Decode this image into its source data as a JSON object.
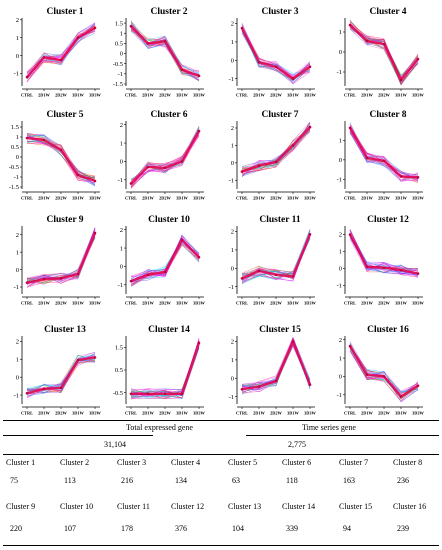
{
  "chart_data": {
    "type": "line",
    "categories": [
      "CTRL",
      "2D1W",
      "2D2W",
      "3D1W",
      "3D3W"
    ],
    "panels": [
      {
        "title": "Cluster 1",
        "yticks": [
          -1,
          0,
          1,
          2
        ],
        "ylim": [
          -1.7,
          2.1
        ],
        "values": [
          -1.2,
          -0.1,
          -0.25,
          1.0,
          1.55
        ]
      },
      {
        "title": "Cluster 2",
        "yticks": [
          -1.5,
          -1,
          -0.5,
          0,
          0.5,
          1,
          1.5
        ],
        "ylim": [
          -1.6,
          1.75
        ],
        "values": [
          1.35,
          0.5,
          0.6,
          -0.8,
          -1.1
        ]
      },
      {
        "title": "Cluster 3",
        "yticks": [
          -1,
          0,
          1,
          2
        ],
        "ylim": [
          -1.4,
          2.3
        ],
        "values": [
          1.75,
          -0.1,
          -0.35,
          -1.0,
          -0.35
        ]
      },
      {
        "title": "Cluster 4",
        "yticks": [
          -1,
          0,
          1
        ],
        "ylim": [
          -1.7,
          1.7
        ],
        "values": [
          1.35,
          0.55,
          0.4,
          -1.4,
          -0.35
        ]
      },
      {
        "title": "Cluster 5",
        "yticks": [
          -1.5,
          -1,
          -0.5,
          0,
          0.5,
          1,
          1.5
        ],
        "ylim": [
          -1.6,
          1.8
        ],
        "values": [
          0.95,
          0.85,
          0.35,
          -0.9,
          -1.2
        ]
      },
      {
        "title": "Cluster 6",
        "yticks": [
          -1,
          0,
          1,
          2
        ],
        "ylim": [
          -1.5,
          2.2
        ],
        "values": [
          -1.2,
          -0.3,
          -0.35,
          0.0,
          1.65
        ]
      },
      {
        "title": "Cluster 7",
        "yticks": [
          -1,
          0,
          1,
          2
        ],
        "ylim": [
          -1.5,
          2.4
        ],
        "values": [
          -0.5,
          -0.15,
          0.05,
          1.0,
          2.05
        ]
      },
      {
        "title": "Cluster 8",
        "yticks": [
          -1,
          0,
          1
        ],
        "ylim": [
          -1.5,
          2.0
        ],
        "values": [
          1.65,
          0.1,
          -0.05,
          -0.85,
          -0.9
        ]
      },
      {
        "title": "Cluster 9",
        "yticks": [
          -1,
          0,
          1,
          2
        ],
        "ylim": [
          -1.4,
          2.5
        ],
        "values": [
          -0.75,
          -0.55,
          -0.5,
          -0.25,
          2.1
        ]
      },
      {
        "title": "Cluster 10",
        "yticks": [
          -1,
          0,
          1,
          2
        ],
        "ylim": [
          -1.5,
          2.2
        ],
        "values": [
          -0.8,
          -0.45,
          -0.3,
          1.45,
          0.5
        ]
      },
      {
        "title": "Cluster 11",
        "yticks": [
          -1,
          0,
          1,
          2
        ],
        "ylim": [
          -1.4,
          2.3
        ],
        "values": [
          -0.55,
          -0.15,
          -0.35,
          -0.45,
          1.85
        ]
      },
      {
        "title": "Cluster 12",
        "yticks": [
          -1,
          0,
          1,
          2
        ],
        "ylim": [
          -1.5,
          2.5
        ],
        "values": [
          2.0,
          0.1,
          0.05,
          -0.1,
          -0.3
        ]
      },
      {
        "title": "Cluster 13",
        "yticks": [
          -1,
          0,
          1,
          2
        ],
        "ylim": [
          -1.5,
          2.3
        ],
        "values": [
          -0.9,
          -0.65,
          -0.6,
          0.95,
          1.1
        ]
      },
      {
        "title": "Cluster 14",
        "yticks": [
          -0.5,
          0.5,
          1.5
        ],
        "ylim": [
          -1.0,
          2.0
        ],
        "values": [
          -0.55,
          -0.55,
          -0.55,
          -0.55,
          1.7
        ]
      },
      {
        "title": "Cluster 15",
        "yticks": [
          -1,
          0,
          1,
          2
        ],
        "ylim": [
          -1.4,
          2.3
        ],
        "values": [
          -0.6,
          -0.45,
          -0.15,
          2.0,
          -0.35
        ]
      },
      {
        "title": "Cluster 16",
        "yticks": [
          -1,
          0,
          1,
          2
        ],
        "ylim": [
          -1.5,
          2.2
        ],
        "values": [
          1.65,
          0.1,
          0.0,
          -1.1,
          -0.5
        ]
      }
    ]
  },
  "summary": {
    "total_label": "Total expressed gene",
    "total_value": "31,104",
    "ts_label": "Time series gene",
    "ts_value": "2,775",
    "clusters": [
      {
        "name": "Cluster 1",
        "count": "75"
      },
      {
        "name": "Cluster 2",
        "count": "113"
      },
      {
        "name": "Cluster 3",
        "count": "216"
      },
      {
        "name": "Cluster 4",
        "count": "134"
      },
      {
        "name": "Cluster 5",
        "count": "63"
      },
      {
        "name": "Cluster 6",
        "count": "118"
      },
      {
        "name": "Cluster 7",
        "count": "163"
      },
      {
        "name": "Cluster 8",
        "count": "236"
      },
      {
        "name": "Cluster 9",
        "count": "220"
      },
      {
        "name": "Cluster 10",
        "count": "107"
      },
      {
        "name": "Cluster 11",
        "count": "178"
      },
      {
        "name": "Cluster 12",
        "count": "376"
      },
      {
        "name": "Cluster 13",
        "count": "104"
      },
      {
        "name": "Cluster 14",
        "count": "339"
      },
      {
        "name": "Cluster 15",
        "count": "94"
      },
      {
        "name": "Cluster 16",
        "count": "239"
      }
    ]
  }
}
